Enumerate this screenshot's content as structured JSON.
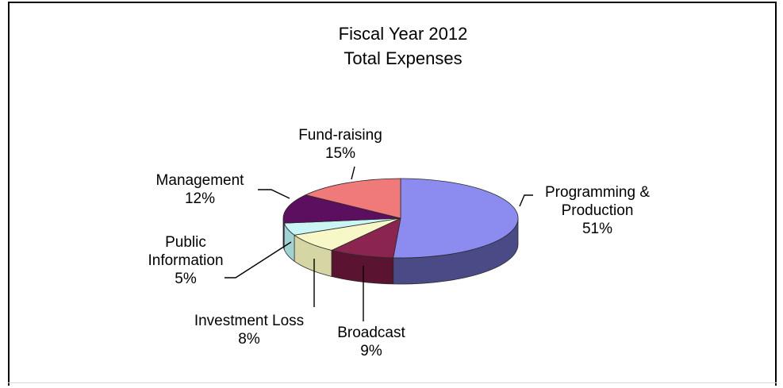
{
  "chart_data": {
    "type": "pie",
    "title": [
      "Fiscal Year 2012",
      "Total Expenses"
    ],
    "slices": [
      {
        "name": "Programming & Production",
        "label_lines": [
          "Programming &",
          "Production"
        ],
        "value": 51,
        "value_label": "51%",
        "color": "#8b8bf0",
        "side_color": "#4a4a86"
      },
      {
        "name": "Broadcast",
        "label_lines": [
          "Broadcast"
        ],
        "value": 9,
        "value_label": "9%",
        "color": "#8b2550",
        "side_color": "#5a1432"
      },
      {
        "name": "Investment Loss",
        "label_lines": [
          "Investment Loss"
        ],
        "value": 8,
        "value_label": "8%",
        "color": "#f7f7c8",
        "side_color": "#d6d6a4"
      },
      {
        "name": "Public Information",
        "label_lines": [
          "Public",
          "Information"
        ],
        "value": 5,
        "value_label": "5%",
        "color": "#c9f5f5",
        "side_color": "#9fd3d3"
      },
      {
        "name": "Management",
        "label_lines": [
          "Management"
        ],
        "value": 12,
        "value_label": "12%",
        "color": "#5c0f5e",
        "side_color": "#3a083b"
      },
      {
        "name": "Fund-raising",
        "label_lines": [
          "Fund-raising"
        ],
        "value": 15,
        "value_label": "15%",
        "color": "#f07a7a",
        "side_color": "#b85858"
      }
    ],
    "legend": "none"
  }
}
